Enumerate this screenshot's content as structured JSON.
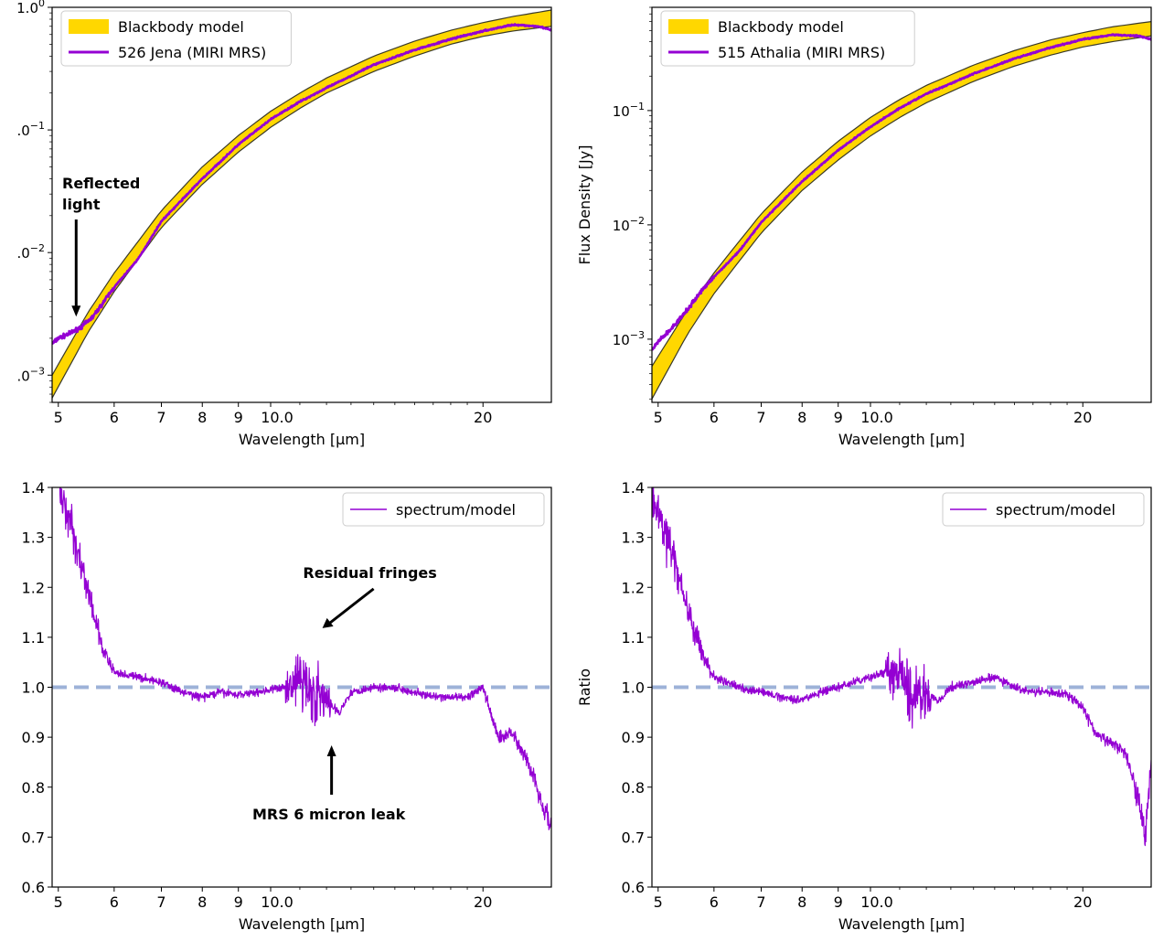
{
  "chart_data": [
    {
      "type": "line",
      "panel": "top-left",
      "xscale": "log",
      "yscale": "log",
      "xlim": [
        4.9,
        25
      ],
      "ylim": [
        0.0006,
        1.0
      ],
      "xlabel": "Wavelength [μm]",
      "ylabel": "",
      "xticks": [
        "5",
        "6",
        "7",
        "8",
        "9",
        "10.0",
        "20"
      ],
      "yticks": [
        "1e-3",
        "1e-2",
        "1e-1",
        "1e0"
      ],
      "ytick_labels": [
        ".0⁻³",
        ".0⁻²",
        ".0⁻¹",
        "1.0⁰"
      ],
      "legend_position": "upper left",
      "series": [
        {
          "name": "Blackbody model",
          "kind": "band",
          "color": "#FFD700",
          "x": [
            4.9,
            5.5,
            6,
            7,
            8,
            9,
            10,
            11,
            12,
            14,
            16,
            18,
            20,
            22,
            25
          ],
          "lower": [
            0.00065,
            0.0022,
            0.0048,
            0.016,
            0.036,
            0.066,
            0.105,
            0.15,
            0.2,
            0.3,
            0.4,
            0.5,
            0.58,
            0.64,
            0.7
          ],
          "upper": [
            0.001,
            0.0032,
            0.0068,
            0.022,
            0.05,
            0.09,
            0.142,
            0.2,
            0.265,
            0.4,
            0.53,
            0.65,
            0.75,
            0.84,
            0.95
          ]
        },
        {
          "name": "526 Jena (MIRI MRS)",
          "kind": "line",
          "color": "#9400D3",
          "x": [
            4.9,
            5.0,
            5.2,
            5.4,
            5.6,
            6,
            6.5,
            7,
            8,
            9,
            10,
            11,
            12,
            14,
            16,
            18,
            20,
            22,
            24,
            25
          ],
          "y": [
            0.0018,
            0.002,
            0.0022,
            0.0025,
            0.003,
            0.0052,
            0.009,
            0.018,
            0.04,
            0.076,
            0.122,
            0.17,
            0.22,
            0.34,
            0.45,
            0.55,
            0.64,
            0.72,
            0.7,
            0.65
          ]
        }
      ],
      "annotations": [
        {
          "text_lines": [
            "Reflected",
            "light"
          ],
          "x": 5.3,
          "y": 0.003
        }
      ]
    },
    {
      "type": "line",
      "panel": "top-right",
      "xscale": "log",
      "yscale": "log",
      "xlim": [
        4.9,
        25
      ],
      "ylim": [
        0.00028,
        0.8
      ],
      "xlabel": "Wavelength [μm]",
      "ylabel": "Flux Density [Jy]",
      "xticks": [
        "5",
        "6",
        "7",
        "8",
        "9",
        "10.0",
        "20"
      ],
      "yticks": [
        "1e-3",
        "1e-2",
        "1e-1"
      ],
      "ytick_labels": [
        "10⁻³",
        "10⁻²",
        "10⁻¹"
      ],
      "legend_position": "upper left",
      "series": [
        {
          "name": "Blackbody model",
          "kind": "band",
          "color": "#FFD700",
          "x": [
            4.9,
            5.5,
            6,
            7,
            8,
            9,
            10,
            11,
            12,
            14,
            16,
            18,
            20,
            22,
            25
          ],
          "lower": [
            0.0003,
            0.0011,
            0.0025,
            0.0085,
            0.02,
            0.037,
            0.06,
            0.087,
            0.117,
            0.18,
            0.245,
            0.305,
            0.36,
            0.4,
            0.45
          ],
          "upper": [
            0.00058,
            0.0018,
            0.0038,
            0.0125,
            0.029,
            0.054,
            0.087,
            0.125,
            0.166,
            0.25,
            0.335,
            0.415,
            0.48,
            0.54,
            0.6
          ]
        },
        {
          "name": "515 Athalia (MIRI MRS)",
          "kind": "line",
          "color": "#9400D3",
          "x": [
            4.9,
            5.0,
            5.2,
            5.5,
            5.8,
            6,
            6.5,
            7,
            8,
            9,
            10,
            11,
            12,
            14,
            16,
            18,
            20,
            22,
            24,
            25
          ],
          "y": [
            0.0008,
            0.00095,
            0.0012,
            0.0018,
            0.0028,
            0.0035,
            0.0058,
            0.0105,
            0.024,
            0.045,
            0.072,
            0.105,
            0.14,
            0.21,
            0.285,
            0.355,
            0.42,
            0.46,
            0.45,
            0.42
          ]
        }
      ]
    },
    {
      "type": "line",
      "panel": "bottom-left",
      "xscale": "log",
      "yscale": "linear",
      "xlim": [
        4.9,
        25
      ],
      "ylim": [
        0.6,
        1.4
      ],
      "xlabel": "Wavelength [μm]",
      "ylabel": "",
      "xticks": [
        "5",
        "6",
        "7",
        "8",
        "9",
        "10.0",
        "20"
      ],
      "yticks": [
        "0.6",
        "0.7",
        "0.8",
        "0.9",
        "1.0",
        "1.1",
        "1.2",
        "1.3",
        "1.4"
      ],
      "legend_position": "upper right",
      "reference_line": {
        "y": 1.0,
        "style": "dashed",
        "color": "#9DB2D8"
      },
      "series": [
        {
          "name": "spectrum/model",
          "kind": "line",
          "color": "#9400D3",
          "x": [
            5.0,
            5.2,
            5.4,
            5.6,
            5.8,
            6,
            6.5,
            7,
            7.5,
            8,
            8.5,
            9,
            9.5,
            10,
            10.5,
            11,
            11.5,
            12,
            12.5,
            13,
            14,
            15,
            16,
            17,
            18,
            19,
            20,
            21,
            22,
            23,
            24,
            25
          ],
          "y": [
            1.4,
            1.33,
            1.24,
            1.15,
            1.07,
            1.03,
            1.02,
            1.01,
            0.99,
            0.98,
            0.99,
            0.985,
            0.99,
            0.995,
            1.0,
            1.02,
            0.99,
            0.97,
            0.95,
            0.99,
            1.0,
            1.0,
            0.99,
            0.98,
            0.98,
            0.98,
            1.0,
            0.9,
            0.91,
            0.86,
            0.79,
            0.72
          ]
        }
      ],
      "annotations": [
        {
          "text": "Residual fringes",
          "x": 11.7,
          "y": 1.1
        },
        {
          "text": "MRS 6 micron leak",
          "x": 12.2,
          "y": 0.88
        }
      ]
    },
    {
      "type": "line",
      "panel": "bottom-right",
      "xscale": "log",
      "yscale": "linear",
      "xlim": [
        4.9,
        25
      ],
      "ylim": [
        0.6,
        1.4
      ],
      "xlabel": "Wavelength [μm]",
      "ylabel": "Ratio",
      "xticks": [
        "5",
        "6",
        "7",
        "8",
        "9",
        "10.0",
        "20"
      ],
      "yticks": [
        "0.6",
        "0.7",
        "0.8",
        "0.9",
        "1.0",
        "1.1",
        "1.2",
        "1.3",
        "1.4"
      ],
      "legend_position": "upper right",
      "reference_line": {
        "y": 1.0,
        "style": "dashed",
        "color": "#9DB2D8"
      },
      "series": [
        {
          "name": "spectrum/model",
          "kind": "line",
          "color": "#9400D3",
          "x": [
            4.9,
            5.0,
            5.2,
            5.4,
            5.6,
            5.8,
            6,
            6.5,
            7,
            7.5,
            8,
            8.5,
            9,
            9.5,
            10,
            10.5,
            11,
            11.5,
            12,
            12.5,
            13,
            14,
            15,
            16,
            17,
            18,
            19,
            20,
            21,
            22,
            23,
            24,
            24.5,
            25
          ],
          "y": [
            1.38,
            1.35,
            1.28,
            1.2,
            1.12,
            1.06,
            1.02,
            1.0,
            0.99,
            0.98,
            0.975,
            0.99,
            1.0,
            1.01,
            1.02,
            1.03,
            1.02,
            0.98,
            0.99,
            0.97,
            1.0,
            1.01,
            1.02,
            1.0,
            0.99,
            0.99,
            0.985,
            0.96,
            0.9,
            0.89,
            0.87,
            0.78,
            0.7,
            0.85
          ]
        }
      ]
    }
  ]
}
